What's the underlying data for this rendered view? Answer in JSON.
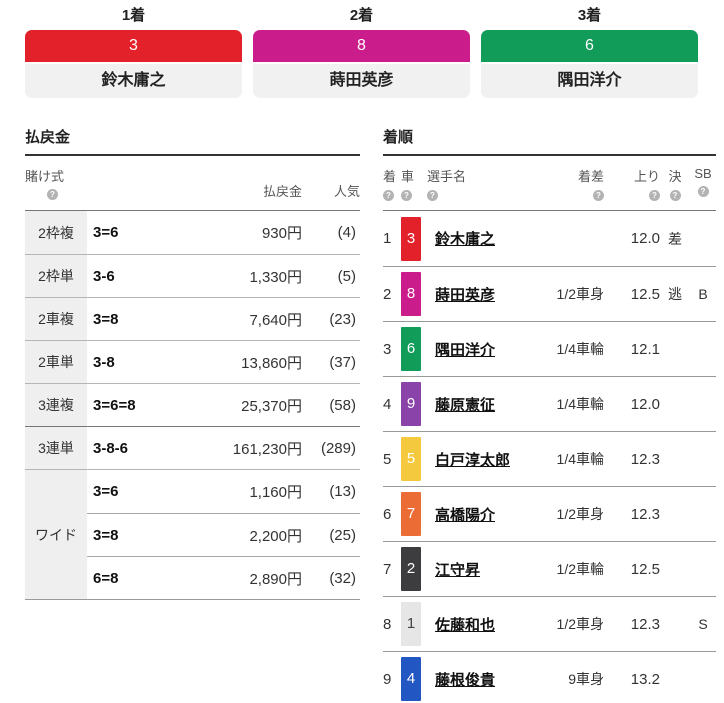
{
  "podium": [
    {
      "rank_label": "1着",
      "car": "3",
      "name": "鈴木庸之",
      "color": "#e3212a",
      "fg": "#ffffff"
    },
    {
      "rank_label": "2着",
      "car": "8",
      "name": "蒔田英彦",
      "color": "#ca1d8b",
      "fg": "#ffffff"
    },
    {
      "rank_label": "3着",
      "car": "6",
      "name": "隅田洋介",
      "color": "#129c59",
      "fg": "#ffffff"
    }
  ],
  "payout": {
    "title": "払戻金",
    "headers": {
      "bet_type": "賭け式",
      "help": "?",
      "payout": "払戻金",
      "popularity": "人気"
    },
    "rows": [
      {
        "type": "2枠複",
        "combo": "3=6",
        "amount": "930円",
        "pop": "(4)"
      },
      {
        "type": "2枠単",
        "combo": "3-6",
        "amount": "1,330円",
        "pop": "(5)"
      },
      {
        "type": "2車複",
        "combo": "3=8",
        "amount": "7,640円",
        "pop": "(23)"
      },
      {
        "type": "2車単",
        "combo": "3-8",
        "amount": "13,860円",
        "pop": "(37)"
      },
      {
        "type": "3連複",
        "combo": "3=6=8",
        "amount": "25,370円",
        "pop": "(58)"
      },
      {
        "type": "3連単",
        "combo": "3-8-6",
        "amount": "161,230円",
        "pop": "(289)"
      }
    ],
    "wide": {
      "type": "ワイド",
      "rows": [
        {
          "combo": "3=6",
          "amount": "1,160円",
          "pop": "(13)"
        },
        {
          "combo": "3=8",
          "amount": "2,200円",
          "pop": "(25)"
        },
        {
          "combo": "6=8",
          "amount": "2,890円",
          "pop": "(32)"
        }
      ]
    }
  },
  "results": {
    "title": "着順",
    "headers": {
      "place": "着",
      "car": "車",
      "name": "選手名",
      "margin": "着差",
      "lap": "上り",
      "tactic": "決",
      "sb": "SB",
      "help": "?"
    },
    "rows": [
      {
        "place": "1",
        "car": "3",
        "name": "鈴木庸之",
        "margin": "",
        "lap": "12.0",
        "tactic": "差",
        "sb": "",
        "color": "#e3212a",
        "fg": "#ffffff"
      },
      {
        "place": "2",
        "car": "8",
        "name": "蒔田英彦",
        "margin": "1/2車身",
        "lap": "12.5",
        "tactic": "逃",
        "sb": "B",
        "color": "#ca1d8b",
        "fg": "#ffffff"
      },
      {
        "place": "3",
        "car": "6",
        "name": "隅田洋介",
        "margin": "1/4車輪",
        "lap": "12.1",
        "tactic": "",
        "sb": "",
        "color": "#129c59",
        "fg": "#ffffff"
      },
      {
        "place": "4",
        "car": "9",
        "name": "藤原憲征",
        "margin": "1/4車輪",
        "lap": "12.0",
        "tactic": "",
        "sb": "",
        "color": "#8a43a8",
        "fg": "#ffffff"
      },
      {
        "place": "5",
        "car": "5",
        "name": "白戸淳太郎",
        "margin": "1/4車輪",
        "lap": "12.3",
        "tactic": "",
        "sb": "",
        "color": "#f5c93d",
        "fg": "#ffffff"
      },
      {
        "place": "6",
        "car": "7",
        "name": "高橋陽介",
        "margin": "1/2車身",
        "lap": "12.3",
        "tactic": "",
        "sb": "",
        "color": "#ec6c35",
        "fg": "#ffffff"
      },
      {
        "place": "7",
        "car": "2",
        "name": "江守昇",
        "margin": "1/2車輪",
        "lap": "12.5",
        "tactic": "",
        "sb": "",
        "color": "#3d3d3f",
        "fg": "#ffffff"
      },
      {
        "place": "8",
        "car": "1",
        "name": "佐藤和也",
        "margin": "1/2車身",
        "lap": "12.3",
        "tactic": "",
        "sb": "S",
        "color": "#e6e6e6",
        "fg": "#444444"
      },
      {
        "place": "9",
        "car": "4",
        "name": "藤根俊貴",
        "margin": "9車身",
        "lap": "13.2",
        "tactic": "",
        "sb": "",
        "color": "#2256c2",
        "fg": "#ffffff"
      }
    ]
  }
}
